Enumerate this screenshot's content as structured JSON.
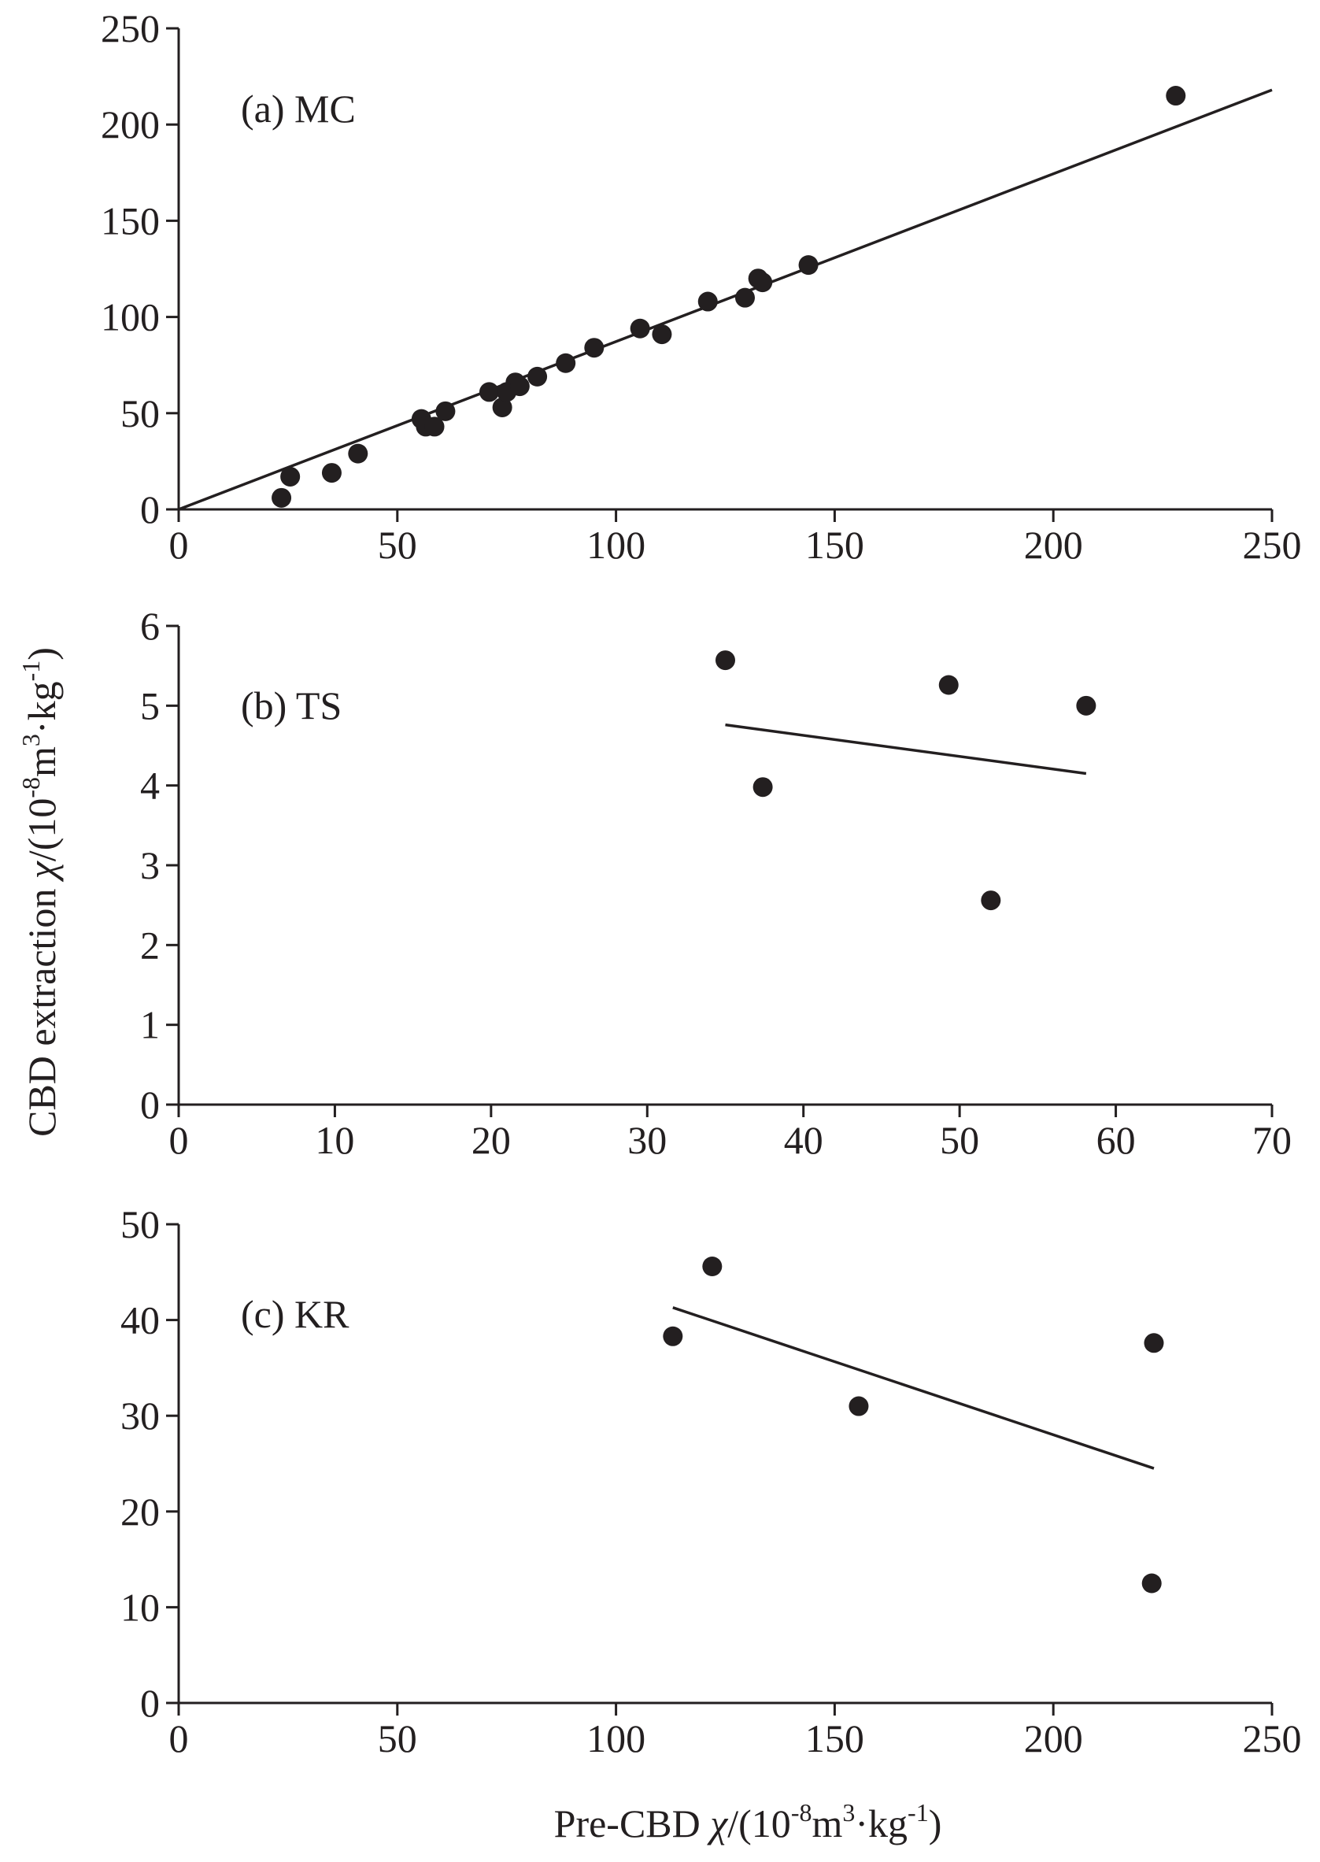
{
  "chart_data": [
    {
      "type": "scatter",
      "panel_label": "(a) MC",
      "xlim": [
        0,
        250
      ],
      "ylim": [
        0,
        250
      ],
      "xticks": [
        0,
        50,
        100,
        150,
        200,
        250
      ],
      "yticks": [
        0,
        50,
        100,
        150,
        200,
        250
      ],
      "grid": false,
      "points": [
        {
          "x": 23.5,
          "y": 6
        },
        {
          "x": 25.5,
          "y": 17
        },
        {
          "x": 35,
          "y": 19
        },
        {
          "x": 41,
          "y": 29
        },
        {
          "x": 55.5,
          "y": 47
        },
        {
          "x": 56.5,
          "y": 43
        },
        {
          "x": 58.5,
          "y": 43
        },
        {
          "x": 61,
          "y": 51
        },
        {
          "x": 71,
          "y": 61
        },
        {
          "x": 74,
          "y": 53
        },
        {
          "x": 75,
          "y": 61
        },
        {
          "x": 77,
          "y": 66
        },
        {
          "x": 78,
          "y": 64
        },
        {
          "x": 82,
          "y": 69
        },
        {
          "x": 88.5,
          "y": 76
        },
        {
          "x": 95,
          "y": 84
        },
        {
          "x": 105.5,
          "y": 94
        },
        {
          "x": 110.5,
          "y": 91
        },
        {
          "x": 121,
          "y": 108
        },
        {
          "x": 129.5,
          "y": 110
        },
        {
          "x": 132.5,
          "y": 120
        },
        {
          "x": 133.5,
          "y": 118
        },
        {
          "x": 144,
          "y": 127
        },
        {
          "x": 228,
          "y": 215
        }
      ],
      "fit_line": {
        "x": [
          0,
          250
        ],
        "y": [
          0,
          218
        ]
      }
    },
    {
      "type": "scatter",
      "panel_label": "(b) TS",
      "xlim": [
        0,
        70
      ],
      "ylim": [
        0,
        6
      ],
      "xticks": [
        0,
        10,
        20,
        30,
        40,
        50,
        60,
        70
      ],
      "yticks": [
        0,
        1,
        2,
        3,
        4,
        5,
        6
      ],
      "grid": false,
      "points": [
        {
          "x": 35,
          "y": 5.57
        },
        {
          "x": 37.4,
          "y": 3.98
        },
        {
          "x": 49.3,
          "y": 5.26
        },
        {
          "x": 52,
          "y": 2.56
        },
        {
          "x": 58.1,
          "y": 5.0
        }
      ],
      "fit_line": {
        "x": [
          35,
          58.1
        ],
        "y": [
          4.76,
          4.15
        ]
      }
    },
    {
      "type": "scatter",
      "panel_label": "(c) KR",
      "xlim": [
        0,
        250
      ],
      "ylim": [
        0,
        50
      ],
      "xticks": [
        0,
        50,
        100,
        150,
        200,
        250
      ],
      "yticks": [
        0,
        10,
        20,
        30,
        40,
        50
      ],
      "grid": false,
      "points": [
        {
          "x": 113,
          "y": 38.3
        },
        {
          "x": 122,
          "y": 45.6
        },
        {
          "x": 155.5,
          "y": 31.0
        },
        {
          "x": 222.5,
          "y": 12.5
        },
        {
          "x": 223,
          "y": 37.6
        }
      ],
      "fit_line": {
        "x": [
          113,
          223
        ],
        "y": [
          41.3,
          24.5
        ]
      }
    }
  ],
  "ylabel": {
    "main": "CBD extraction ",
    "chi": "χ",
    "unit_open": "/(10",
    "exp1": "-8",
    "unit_mid": "m",
    "exp2": "3",
    "unit_mid2": "·kg",
    "exp3": "-1",
    "unit_close": ")"
  },
  "xlabel": {
    "main": "Pre-CBD ",
    "chi": "χ",
    "unit_open": "/(10",
    "exp1": "-8",
    "unit_mid": "m",
    "exp2": "3",
    "unit_mid2": "·kg",
    "exp3": "-1",
    "unit_close": ")"
  },
  "colors": {
    "ink": "#231f20",
    "background": "#ffffff"
  }
}
